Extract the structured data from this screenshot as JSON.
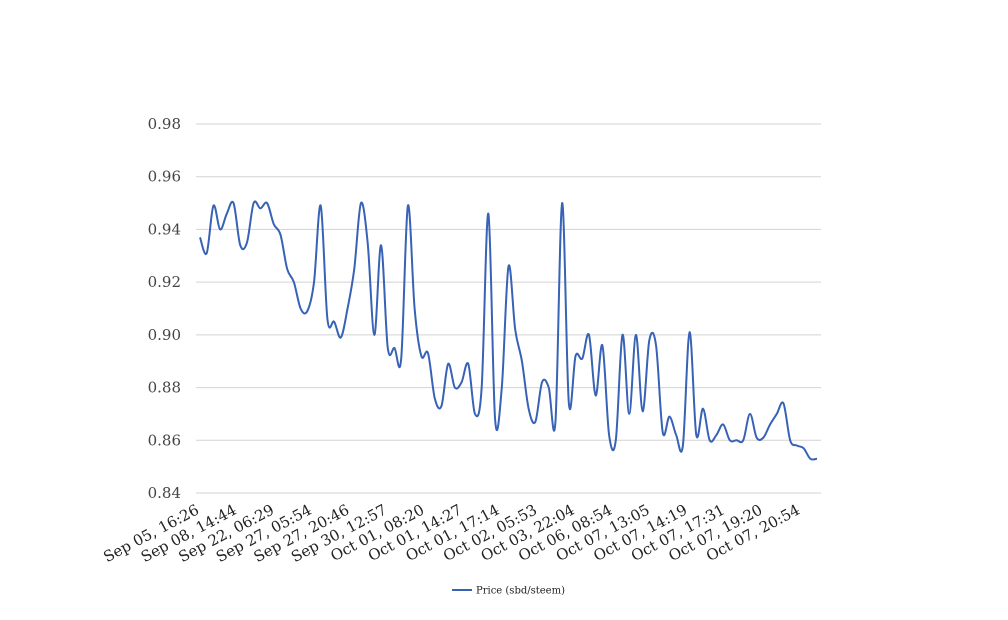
{
  "chart_data": {
    "type": "line",
    "title": "",
    "xlabel": "",
    "ylabel": "",
    "ylim": [
      0.84,
      0.98
    ],
    "yticks": [
      "0.84",
      "0.86",
      "0.88",
      "0.90",
      "0.92",
      "0.94",
      "0.96",
      "0.98"
    ],
    "grid": "horizontal",
    "legend_position": "bottom",
    "x_tick_labels": [
      "Sep 05, 16:26",
      "Sep 08, 14:44",
      "Sep 22, 06:29",
      "Sep 27, 05:54",
      "Sep 27, 20:46",
      "Sep 30, 12:57",
      "Oct 01, 08:20",
      "Oct 01, 14:27",
      "Oct 01, 17:14",
      "Oct 02, 05:53",
      "Oct 03, 22:04",
      "Oct 06, 08:54",
      "Oct 07, 13:05",
      "Oct 07, 14:19",
      "Oct 07, 17:31",
      "Oct 07, 19:20",
      "Oct 07, 20:54"
    ],
    "series": [
      {
        "name": "Price (sbd/steem)",
        "color": "#3762b5",
        "values": [
          0.937,
          0.931,
          0.949,
          0.94,
          0.946,
          0.95,
          0.934,
          0.935,
          0.95,
          0.948,
          0.95,
          0.942,
          0.938,
          0.925,
          0.92,
          0.91,
          0.909,
          0.92,
          0.949,
          0.906,
          0.905,
          0.899,
          0.91,
          0.925,
          0.95,
          0.935,
          0.9,
          0.934,
          0.895,
          0.895,
          0.891,
          0.949,
          0.91,
          0.892,
          0.893,
          0.876,
          0.873,
          0.889,
          0.88,
          0.882,
          0.889,
          0.87,
          0.88,
          0.946,
          0.868,
          0.88,
          0.926,
          0.902,
          0.89,
          0.872,
          0.867,
          0.882,
          0.88,
          0.867,
          0.95,
          0.874,
          0.892,
          0.891,
          0.9,
          0.877,
          0.896,
          0.862,
          0.86,
          0.9,
          0.87,
          0.9,
          0.871,
          0.898,
          0.896,
          0.863,
          0.869,
          0.862,
          0.858,
          0.901,
          0.862,
          0.872,
          0.86,
          0.862,
          0.866,
          0.86,
          0.86,
          0.86,
          0.87,
          0.861,
          0.861,
          0.866,
          0.87,
          0.874,
          0.86,
          0.858,
          0.857,
          0.853,
          0.853
        ]
      }
    ]
  }
}
